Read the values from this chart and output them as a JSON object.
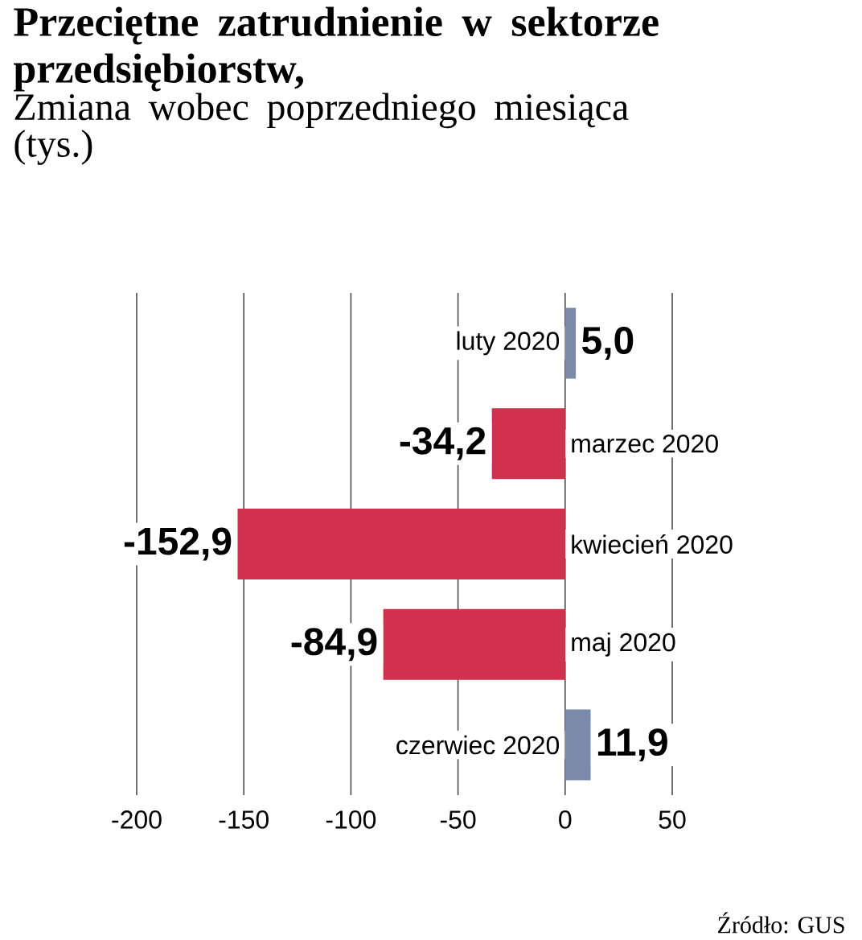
{
  "chart_data": {
    "type": "bar",
    "orientation": "horizontal",
    "title": "Przeciętne zatrudnienie w sektorze przedsiębiorstw,",
    "subtitle": "Zmiana wobec poprzedniego miesiąca (tys.)",
    "categories": [
      "luty 2020",
      "marzec 2020",
      "kwiecień 2020",
      "maj 2020",
      "czerwiec 2020"
    ],
    "values": [
      5.0,
      -34.2,
      -152.9,
      -84.9,
      11.9
    ],
    "colors": [
      "#7b8aa8",
      "#d1314d",
      "#d1314d",
      "#d1314d",
      "#7b8aa8"
    ],
    "value_labels": [
      "5,0",
      "-34,2",
      "-152,9",
      "-84,9",
      "11,9"
    ],
    "xlim": [
      -200,
      50
    ],
    "xticks": [
      -200,
      -150,
      -100,
      -50,
      0,
      50
    ],
    "grid": "x",
    "annotations": [
      "Źródło: GUS"
    ]
  }
}
